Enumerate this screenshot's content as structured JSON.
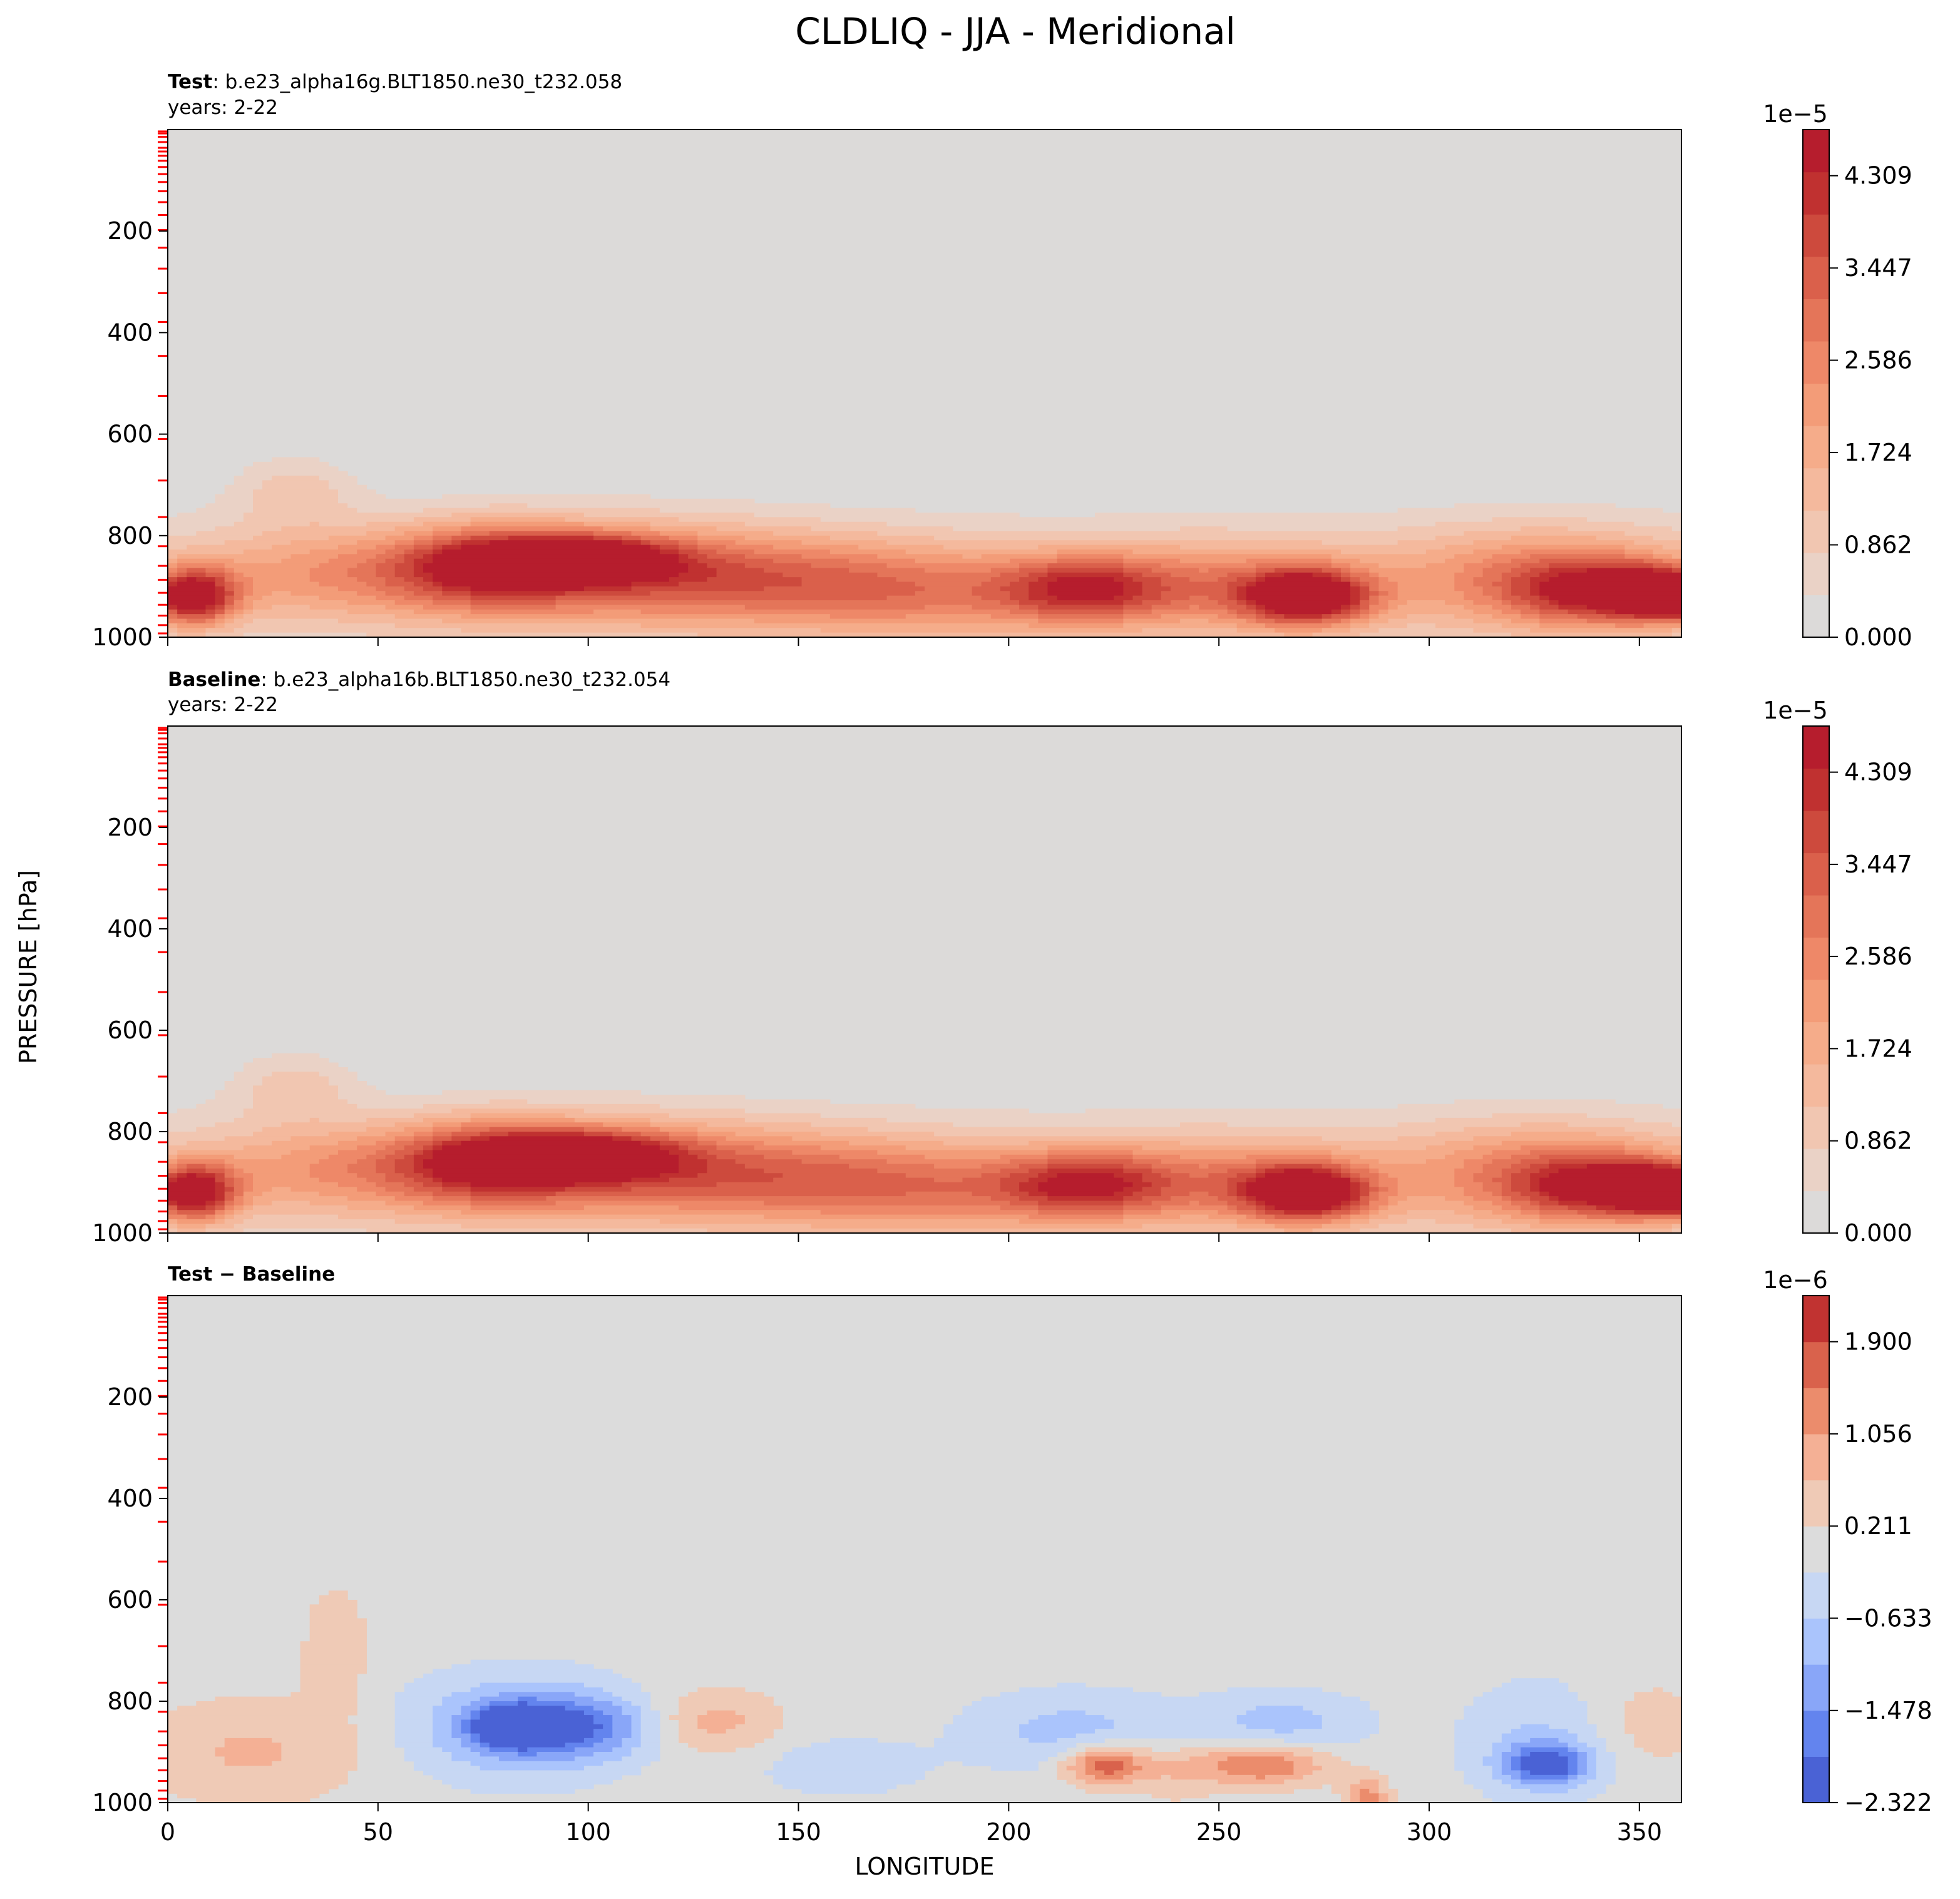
{
  "chart_data": {
    "type": "heatmap",
    "title": "CLDLIQ - JJA - Meridional",
    "xlabel": "LONGITUDE",
    "ylabel": "PRESSURE [hPa]",
    "xlim": [
      0,
      360
    ],
    "ylim": [
      1000,
      0
    ],
    "x_ticks": [
      "0",
      "50",
      "100",
      "150",
      "200",
      "250",
      "300",
      "350"
    ],
    "y_ticks": [
      "200",
      "400",
      "600",
      "800",
      "1000"
    ],
    "level_ticks_hpa": [
      3.64,
      7.59,
      14.36,
      24.61,
      35.92,
      43.19,
      51.68,
      61.52,
      73.75,
      87.82,
      103.32,
      121.55,
      142.99,
      168.23,
      197.91,
      232.83,
      273.91,
      322.24,
      379.1,
      445.99,
      524.69,
      609.78,
      691.39,
      763.4,
      820.86,
      859.53,
      887.02,
      912.64,
      936.2,
      957.49,
      976.33,
      992.56
    ],
    "panels": [
      {
        "id": "test",
        "label_bold": "Test",
        "label_rest": ": b.e23_alpha16g.BLT1850.ne30_t232.058",
        "years": "years: 2-22",
        "colorbar_scale": "1e−5",
        "colorbar_ticks": [
          "0.000",
          "0.862",
          "1.724",
          "2.586",
          "3.447",
          "4.309"
        ],
        "colorbar_ticks_values": [
          0.0,
          0.862,
          1.724,
          2.586,
          3.447,
          4.309
        ],
        "colorbar_range": [
          0.0,
          4.74
        ],
        "colors": [
          "#dcdad9",
          "#ead2c6",
          "#f1c6b1",
          "#f4b99d",
          "#f5ac8a",
          "#f39c78",
          "#ee8868",
          "#e47559",
          "#da604b",
          "#cd4a3d",
          "#c03130",
          "#b61d2d"
        ],
        "blobs": [
          [
            6,
            920,
            10,
            55,
            4.3
          ],
          [
            40,
            870,
            35,
            85,
            1.3
          ],
          [
            75,
            860,
            22,
            80,
            2.4
          ],
          [
            98,
            845,
            22,
            45,
            3.3
          ],
          [
            100,
            870,
            40,
            100,
            1.9
          ],
          [
            140,
            880,
            40,
            90,
            1.5
          ],
          [
            180,
            915,
            40,
            90,
            1.6
          ],
          [
            218,
            905,
            20,
            65,
            2.7
          ],
          [
            250,
            900,
            30,
            90,
            1.6
          ],
          [
            271,
            920,
            15,
            55,
            4.4
          ],
          [
            340,
            910,
            20,
            65,
            2.9
          ],
          [
            352,
            915,
            9,
            45,
            3.6
          ],
          [
            360,
            920,
            6,
            40,
            4.3
          ],
          [
            30,
            710,
            15,
            70,
            0.9
          ],
          [
            325,
            880,
            35,
            100,
            1.7
          ]
        ]
      },
      {
        "id": "baseline",
        "label_bold": "Baseline",
        "label_rest": ": b.e23_alpha16b.BLT1850.ne30_t232.054",
        "years": "years: 2-22",
        "colorbar_scale": "1e−5",
        "colorbar_ticks": [
          "0.000",
          "0.862",
          "1.724",
          "2.586",
          "3.447",
          "4.309"
        ],
        "colorbar_ticks_values": [
          0.0,
          0.862,
          1.724,
          2.586,
          3.447,
          4.309
        ],
        "colorbar_range": [
          0.0,
          4.74
        ],
        "colors": [
          "#dcdad9",
          "#ead2c6",
          "#f1c6b1",
          "#f4b99d",
          "#f5ac8a",
          "#f39c78",
          "#ee8868",
          "#e47559",
          "#da604b",
          "#cd4a3d",
          "#c03130",
          "#b61d2d"
        ],
        "blobs": [
          [
            6,
            920,
            10,
            55,
            4.3
          ],
          [
            40,
            870,
            35,
            85,
            1.3
          ],
          [
            75,
            860,
            22,
            80,
            2.4
          ],
          [
            98,
            845,
            22,
            45,
            3.2
          ],
          [
            100,
            870,
            40,
            100,
            1.9
          ],
          [
            140,
            880,
            40,
            90,
            1.4
          ],
          [
            180,
            915,
            40,
            90,
            1.7
          ],
          [
            218,
            905,
            20,
            65,
            2.7
          ],
          [
            250,
            900,
            30,
            90,
            1.6
          ],
          [
            271,
            920,
            15,
            55,
            4.4
          ],
          [
            340,
            910,
            20,
            65,
            2.9
          ],
          [
            352,
            915,
            9,
            45,
            3.6
          ],
          [
            360,
            920,
            6,
            40,
            4.3
          ],
          [
            30,
            710,
            15,
            70,
            0.9
          ],
          [
            325,
            880,
            35,
            100,
            1.7
          ]
        ]
      },
      {
        "id": "diff",
        "label_bold": "Test − Baseline",
        "label_rest": "",
        "years": "",
        "colorbar_scale": "1e−6",
        "colorbar_ticks": [
          "−2.322",
          "−1.478",
          "−0.633",
          "0.211",
          "1.056",
          "1.900"
        ],
        "colorbar_ticks_values": [
          -2.322,
          -1.478,
          -0.633,
          0.211,
          1.056,
          1.9
        ],
        "colorbar_range": [
          -2.322,
          2.322
        ],
        "colors": [
          "#4a62d5",
          "#6384ee",
          "#89a6f8",
          "#aac4fc",
          "#c7d7f3",
          "#dcdcdc",
          "#efcab6",
          "#f4b095",
          "#eb8c6c",
          "#d9624c",
          "#c13331"
        ],
        "blobs": [
          [
            83,
            850,
            10,
            40,
            -2.3
          ],
          [
            83,
            850,
            25,
            100,
            -1.3
          ],
          [
            100,
            850,
            15,
            60,
            -1.2
          ],
          [
            215,
            860,
            25,
            80,
            -0.8
          ],
          [
            265,
            840,
            20,
            60,
            -0.8
          ],
          [
            328,
            925,
            10,
            40,
            -2.0
          ],
          [
            328,
            880,
            20,
            120,
            -0.7
          ],
          [
            160,
            930,
            20,
            60,
            -0.5
          ],
          [
            130,
            840,
            15,
            60,
            0.8
          ],
          [
            20,
            900,
            25,
            100,
            0.7
          ],
          [
            223,
            925,
            10,
            40,
            2.0
          ],
          [
            260,
            925,
            15,
            40,
            1.6
          ],
          [
            285,
            990,
            5,
            40,
            1.3
          ],
          [
            40,
            700,
            8,
            130,
            0.5
          ],
          [
            350,
            850,
            15,
            100,
            0.5
          ],
          [
            240,
            940,
            10,
            60,
            0.5
          ]
        ]
      }
    ]
  }
}
